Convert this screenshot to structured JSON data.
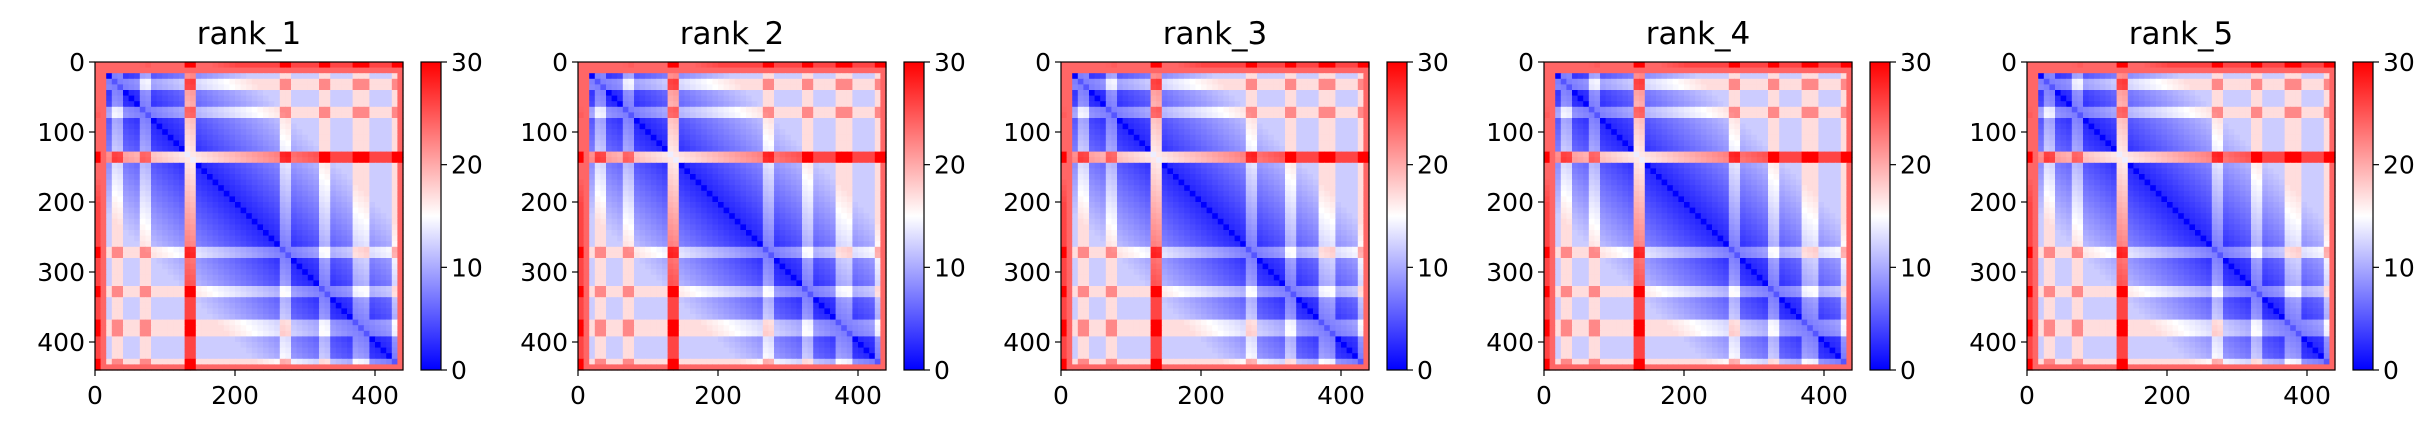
{
  "figure": {
    "panel_count": 5
  },
  "chart_data": [
    {
      "type": "heatmap",
      "title": "rank_1",
      "x_ticks": [
        0,
        200,
        400
      ],
      "y_ticks": [
        0,
        100,
        200,
        300,
        400
      ],
      "xlim": [
        0,
        440
      ],
      "ylim": [
        440,
        0
      ],
      "colorbar": {
        "ticks": [
          0,
          10,
          20,
          30
        ],
        "range": [
          0,
          30
        ],
        "cmap": "bwr"
      },
      "matrix_size": 440,
      "description_values": {
        "diagonal": 0,
        "bands_y": [
          0,
          30,
          70,
          135,
          270,
          330,
          380,
          430
        ]
      }
    },
    {
      "type": "heatmap",
      "title": "rank_2",
      "x_ticks": [
        0,
        200,
        400
      ],
      "y_ticks": [
        0,
        100,
        200,
        300,
        400
      ],
      "xlim": [
        0,
        440
      ],
      "ylim": [
        440,
        0
      ],
      "colorbar": {
        "ticks": [
          0,
          10,
          20,
          30
        ],
        "range": [
          0,
          30
        ],
        "cmap": "bwr"
      },
      "matrix_size": 440,
      "description_values": {
        "diagonal": 0,
        "bands_y": [
          0,
          30,
          70,
          135,
          270,
          330,
          380,
          430
        ]
      }
    },
    {
      "type": "heatmap",
      "title": "rank_3",
      "x_ticks": [
        0,
        200,
        400
      ],
      "y_ticks": [
        0,
        100,
        200,
        300,
        400
      ],
      "xlim": [
        0,
        440
      ],
      "ylim": [
        440,
        0
      ],
      "colorbar": {
        "ticks": [
          0,
          10,
          20,
          30
        ],
        "range": [
          0,
          30
        ],
        "cmap": "bwr"
      },
      "matrix_size": 440,
      "description_values": {
        "diagonal": 0,
        "bands_y": [
          0,
          30,
          70,
          135,
          270,
          330,
          380,
          430
        ]
      }
    },
    {
      "type": "heatmap",
      "title": "rank_4",
      "x_ticks": [
        0,
        200,
        400
      ],
      "y_ticks": [
        0,
        100,
        200,
        300,
        400
      ],
      "xlim": [
        0,
        440
      ],
      "ylim": [
        440,
        0
      ],
      "colorbar": {
        "ticks": [
          0,
          10,
          20,
          30
        ],
        "range": [
          0,
          30
        ],
        "cmap": "bwr"
      },
      "matrix_size": 440,
      "description_values": {
        "diagonal": 0,
        "bands_y": [
          0,
          30,
          70,
          135,
          270,
          330,
          380,
          430
        ]
      }
    },
    {
      "type": "heatmap",
      "title": "rank_5",
      "x_ticks": [
        0,
        200,
        400
      ],
      "y_ticks": [
        0,
        100,
        200,
        300,
        400
      ],
      "xlim": [
        0,
        440
      ],
      "ylim": [
        440,
        0
      ],
      "colorbar": {
        "ticks": [
          0,
          10,
          20,
          30
        ],
        "range": [
          0,
          30
        ],
        "cmap": "bwr"
      },
      "matrix_size": 440,
      "description_values": {
        "diagonal": 0,
        "bands_y": [
          0,
          30,
          70,
          135,
          270,
          330,
          380,
          430
        ]
      }
    }
  ]
}
